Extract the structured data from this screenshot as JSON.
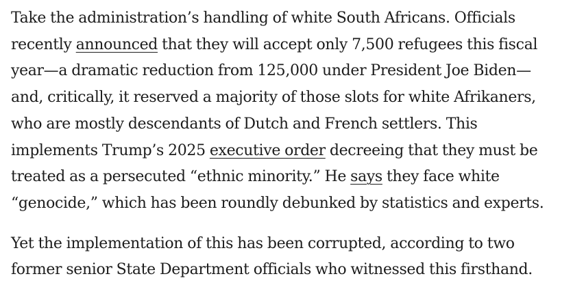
{
  "article": {
    "paragraph_1": {
      "line_1": "Take the administration’s handling of white South Africans. Officials",
      "line_2_start": "recently ",
      "link_announced": "announced",
      "line_2_end": " that they will accept only 7,500 refugees this fiscal",
      "line_3": "year—a dramatic reduction from 125,000 under President Joe Biden—",
      "line_4": "and, critically, it reserved a majority of those slots for white Afrikaners,",
      "line_5": "who are mostly descendants of Dutch and French settlers. This",
      "line_6_start": "implements Trump’s 2025 ",
      "link_executive_order": "executive order",
      "line_6_end": " decreeing that they must be",
      "line_7_start": "treated as a persecuted “ethnic minority.” He ",
      "link_says": "says",
      "line_7_end": " they face white",
      "line_8": "“genocide,” which has been roundly debunked by statistics and experts."
    },
    "paragraph_2": {
      "line_1": "Yet the implementation of this has been corrupted, according to two",
      "line_2": "former senior State Department officials who witnessed this firsthand."
    }
  }
}
